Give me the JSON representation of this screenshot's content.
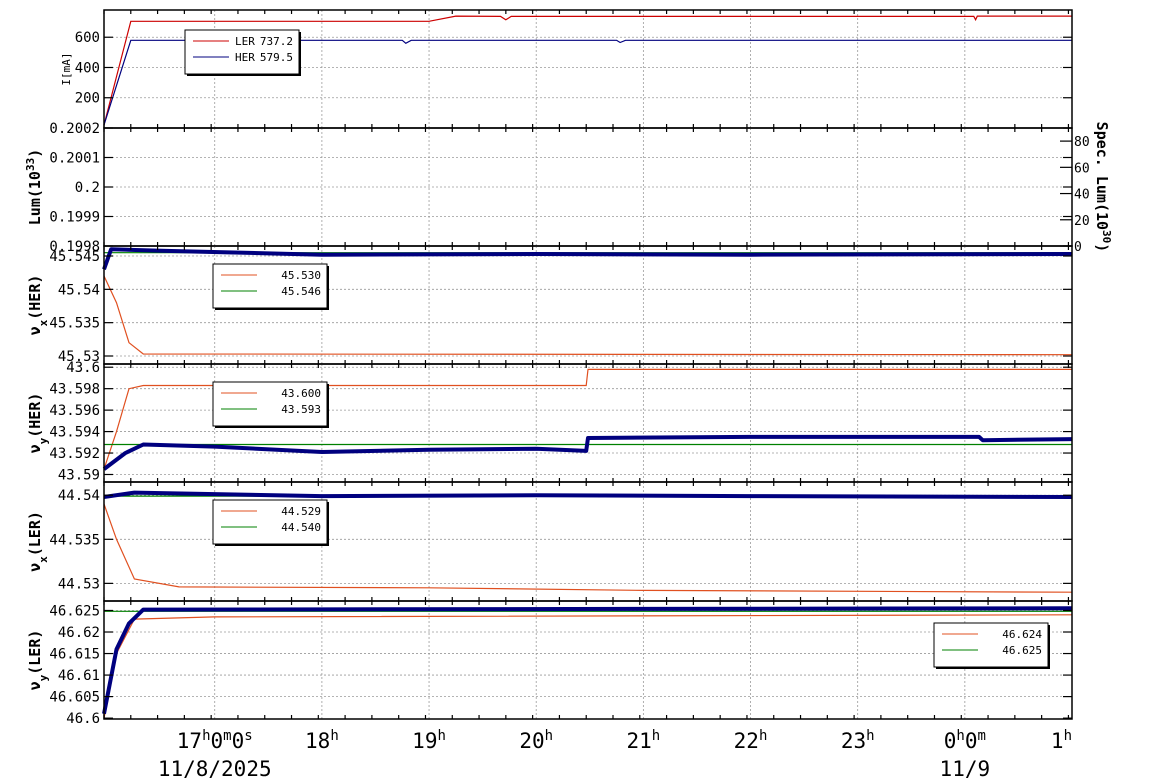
{
  "chart_data": {
    "type": "line",
    "x_time_axis": {
      "range": [
        "2025-11-08 15:58",
        "2025-11-09 01:00"
      ],
      "ticks": [
        {
          "t": "2025-11-08 17:00",
          "h": "17",
          "rest": "h0m0s"
        },
        {
          "t": "2025-11-08 18:00",
          "h": "18",
          "rest": "h"
        },
        {
          "t": "2025-11-08 19:00",
          "h": "19",
          "rest": "h"
        },
        {
          "t": "2025-11-08 20:00",
          "h": "20",
          "rest": "h"
        },
        {
          "t": "2025-11-08 21:00",
          "h": "21",
          "rest": "h"
        },
        {
          "t": "2025-11-08 22:00",
          "h": "22",
          "rest": "h"
        },
        {
          "t": "2025-11-08 23:00",
          "h": "23",
          "rest": "h"
        },
        {
          "t": "2025-11-09 00:00",
          "h": "0",
          "rest": "h0m"
        },
        {
          "t": "2025-11-09 01:00",
          "h": "1",
          "rest": "h"
        }
      ],
      "date_labels": [
        {
          "t": "2025-11-08 17:00",
          "text": "11/8/2025"
        },
        {
          "t": "2025-11-09 00:00",
          "text": "11/9"
        }
      ]
    },
    "panels": [
      {
        "id": "current",
        "ylabel": "I[mA]",
        "ylim": [
          0,
          780
        ],
        "yticks": [
          200,
          400,
          600
        ],
        "legend": {
          "position": "top-left",
          "entries": [
            {
              "name": "LER",
              "value": "737.2",
              "color": "#cc0000"
            },
            {
              "name": "HER",
              "value": "579.5",
              "color": "#00007f"
            }
          ]
        },
        "series": [
          {
            "name": "LER",
            "color": "#cc0000",
            "points": [
              [
                "2025-11-08 15:58",
                20
              ],
              [
                "2025-11-08 16:13",
                705
              ],
              [
                "2025-11-08 19:00",
                705
              ],
              [
                "2025-11-08 19:15",
                740
              ],
              [
                "2025-11-08 19:40",
                738
              ],
              [
                "2025-11-08 19:43",
                715
              ],
              [
                "2025-11-08 19:46",
                738
              ],
              [
                "2025-11-09 00:05",
                738
              ],
              [
                "2025-11-09 00:06",
                715
              ],
              [
                "2025-11-09 00:07",
                740
              ],
              [
                "2025-11-09 01:00",
                740
              ]
            ]
          },
          {
            "name": "HER",
            "color": "#00007f",
            "points": [
              [
                "2025-11-08 15:58",
                20
              ],
              [
                "2025-11-08 16:13",
                580
              ],
              [
                "2025-11-08 18:45",
                580
              ],
              [
                "2025-11-08 18:47",
                560
              ],
              [
                "2025-11-08 18:50",
                580
              ],
              [
                "2025-11-08 20:45",
                580
              ],
              [
                "2025-11-08 20:47",
                565
              ],
              [
                "2025-11-08 20:50",
                580
              ],
              [
                "2025-11-09 01:00",
                580
              ]
            ]
          }
        ]
      },
      {
        "id": "luminosity",
        "ylabel": "Lum(10",
        "ylabel_sup": "33",
        "ylabel_end": ")",
        "ylim": [
          0.1998,
          0.2002
        ],
        "yticks": [
          0.1998,
          0.1999,
          0.2,
          0.2001,
          0.2002
        ],
        "ytick_labels": [
          "0.1998",
          "0.1999",
          "0.2",
          "0.2001",
          "0.2002"
        ],
        "right_ylabel": "Spec. Lum(10",
        "right_ylabel_sup": "30",
        "right_ylabel_end": ")",
        "right_ylim": [
          0,
          90
        ],
        "right_yticks": [
          0,
          20,
          40,
          60,
          80
        ],
        "series": []
      },
      {
        "id": "nux_her",
        "ylabel": "ν",
        "ylabel_sub": "x",
        "ylabel_end": "(HER)",
        "ylim": [
          45.5288,
          45.5465
        ],
        "yticks": [
          45.53,
          45.535,
          45.54,
          45.545
        ],
        "ytick_labels": [
          "45.53",
          "45.535",
          "45.54",
          "45.545"
        ],
        "legend": {
          "position": "top-left",
          "entries": [
            {
              "value": "45.530",
              "color": "#e05020"
            },
            {
              "value": "45.546",
              "color": "#008000"
            }
          ]
        },
        "series": [
          {
            "color": "#e05020",
            "points": [
              [
                "2025-11-08 15:58",
                45.542
              ],
              [
                "2025-11-08 16:05",
                45.538
              ],
              [
                "2025-11-08 16:12",
                45.532
              ],
              [
                "2025-11-08 16:20",
                45.5303
              ],
              [
                "2025-11-09 01:00",
                45.5302
              ]
            ]
          },
          {
            "color": "#008000",
            "points": [
              [
                "2025-11-08 15:58",
                45.5455
              ],
              [
                "2025-11-09 01:00",
                45.5455
              ]
            ]
          },
          {
            "color": "#00007f",
            "style": "markers",
            "points": [
              [
                "2025-11-08 15:58",
                45.543
              ],
              [
                "2025-11-08 16:02",
                45.546
              ],
              [
                "2025-11-08 16:30",
                45.5458
              ],
              [
                "2025-11-08 18:00",
                45.5452
              ],
              [
                "2025-11-08 20:00",
                45.5453
              ],
              [
                "2025-11-08 22:00",
                45.5452
              ],
              [
                "2025-11-09 01:00",
                45.5453
              ]
            ]
          }
        ]
      },
      {
        "id": "nuy_her",
        "ylabel": "ν",
        "ylabel_sub": "y",
        "ylabel_end": "(HER)",
        "ylim": [
          43.5893,
          43.6003
        ],
        "yticks": [
          43.59,
          43.592,
          43.594,
          43.596,
          43.598,
          43.6
        ],
        "ytick_labels": [
          "43.59",
          "43.592",
          "43.594",
          "43.596",
          "43.598",
          "43.6"
        ],
        "legend": {
          "position": "top-left",
          "entries": [
            {
              "value": "43.600",
              "color": "#e05020"
            },
            {
              "value": "43.593",
              "color": "#008000"
            }
          ]
        },
        "series": [
          {
            "color": "#e05020",
            "points": [
              [
                "2025-11-08 15:58",
                43.5905
              ],
              [
                "2025-11-08 16:05",
                43.594
              ],
              [
                "2025-11-08 16:12",
                43.598
              ],
              [
                "2025-11-08 16:20",
                43.5983
              ],
              [
                "2025-11-08 20:28",
                43.5983
              ],
              [
                "2025-11-08 20:29",
                43.5998
              ],
              [
                "2025-11-09 01:00",
                43.5998
              ]
            ]
          },
          {
            "color": "#008000",
            "points": [
              [
                "2025-11-08 15:58",
                43.5928
              ],
              [
                "2025-11-09 01:00",
                43.5928
              ]
            ]
          },
          {
            "color": "#00007f",
            "style": "markers",
            "points": [
              [
                "2025-11-08 15:58",
                43.5905
              ],
              [
                "2025-11-08 16:10",
                43.592
              ],
              [
                "2025-11-08 16:20",
                43.5928
              ],
              [
                "2025-11-08 17:00",
                43.5926
              ],
              [
                "2025-11-08 18:00",
                43.5921
              ],
              [
                "2025-11-08 19:00",
                43.5923
              ],
              [
                "2025-11-08 20:00",
                43.5924
              ],
              [
                "2025-11-08 20:28",
                43.5922
              ],
              [
                "2025-11-08 20:29",
                43.5934
              ],
              [
                "2025-11-08 22:00",
                43.5935
              ],
              [
                "2025-11-09 00:08",
                43.5935
              ],
              [
                "2025-11-09 00:10",
                43.5932
              ],
              [
                "2025-11-09 01:00",
                43.5933
              ]
            ]
          }
        ]
      },
      {
        "id": "nux_ler",
        "ylabel": "ν",
        "ylabel_sub": "x",
        "ylabel_end": "(LER)",
        "ylim": [
          44.528,
          44.5415
        ],
        "yticks": [
          44.53,
          44.535,
          44.54
        ],
        "ytick_labels": [
          "44.53",
          "44.535",
          "44.54"
        ],
        "legend": {
          "position": "top-left",
          "entries": [
            {
              "value": "44.529",
              "color": "#e05020"
            },
            {
              "value": "44.540",
              "color": "#008000"
            }
          ]
        },
        "series": [
          {
            "color": "#e05020",
            "points": [
              [
                "2025-11-08 15:58",
                44.539
              ],
              [
                "2025-11-08 16:05",
                44.535
              ],
              [
                "2025-11-08 16:15",
                44.5305
              ],
              [
                "2025-11-08 16:40",
                44.5296
              ],
              [
                "2025-11-08 19:00",
                44.5295
              ],
              [
                "2025-11-08 21:00",
                44.5292
              ],
              [
                "2025-11-09 01:00",
                44.529
              ]
            ]
          },
          {
            "color": "#008000",
            "points": [
              [
                "2025-11-08 15:58",
                44.5399
              ],
              [
                "2025-11-09 01:00",
                44.5399
              ]
            ]
          },
          {
            "color": "#00007f",
            "style": "markers",
            "points": [
              [
                "2025-11-08 15:58",
                44.5398
              ],
              [
                "2025-11-08 16:15",
                44.5403
              ],
              [
                "2025-11-08 18:00",
                44.5399
              ],
              [
                "2025-11-08 20:00",
                44.54
              ],
              [
                "2025-11-08 22:00",
                44.5399
              ],
              [
                "2025-11-09 01:00",
                44.5398
              ]
            ]
          }
        ]
      },
      {
        "id": "nuy_ler",
        "ylabel": "ν",
        "ylabel_sub": "y",
        "ylabel_end": "(LER)",
        "ylim": [
          46.5998,
          46.6272
        ],
        "yticks": [
          46.6,
          46.605,
          46.61,
          46.615,
          46.62,
          46.625
        ],
        "ytick_labels": [
          "46.6",
          "46.605",
          "46.61",
          "46.615",
          "46.62",
          "46.625"
        ],
        "legend": {
          "position": "top-right",
          "entries": [
            {
              "value": "46.624",
              "color": "#e05020"
            },
            {
              "value": "46.625",
              "color": "#008000"
            }
          ]
        },
        "series": [
          {
            "color": "#e05020",
            "points": [
              [
                "2025-11-08 15:58",
                46.6
              ],
              [
                "2025-11-08 16:05",
                46.615
              ],
              [
                "2025-11-08 16:15",
                46.623
              ],
              [
                "2025-11-08 17:00",
                46.6235
              ],
              [
                "2025-11-09 01:00",
                46.624
              ]
            ]
          },
          {
            "color": "#008000",
            "points": [
              [
                "2025-11-08 15:58",
                46.6248
              ],
              [
                "2025-11-09 01:00",
                46.6248
              ]
            ]
          },
          {
            "color": "#00007f",
            "style": "markers",
            "points": [
              [
                "2025-11-08 15:58",
                46.601
              ],
              [
                "2025-11-08 16:05",
                46.616
              ],
              [
                "2025-11-08 16:12",
                46.622
              ],
              [
                "2025-11-08 16:20",
                46.6252
              ],
              [
                "2025-11-09 01:00",
                46.6255
              ]
            ]
          }
        ]
      }
    ]
  }
}
